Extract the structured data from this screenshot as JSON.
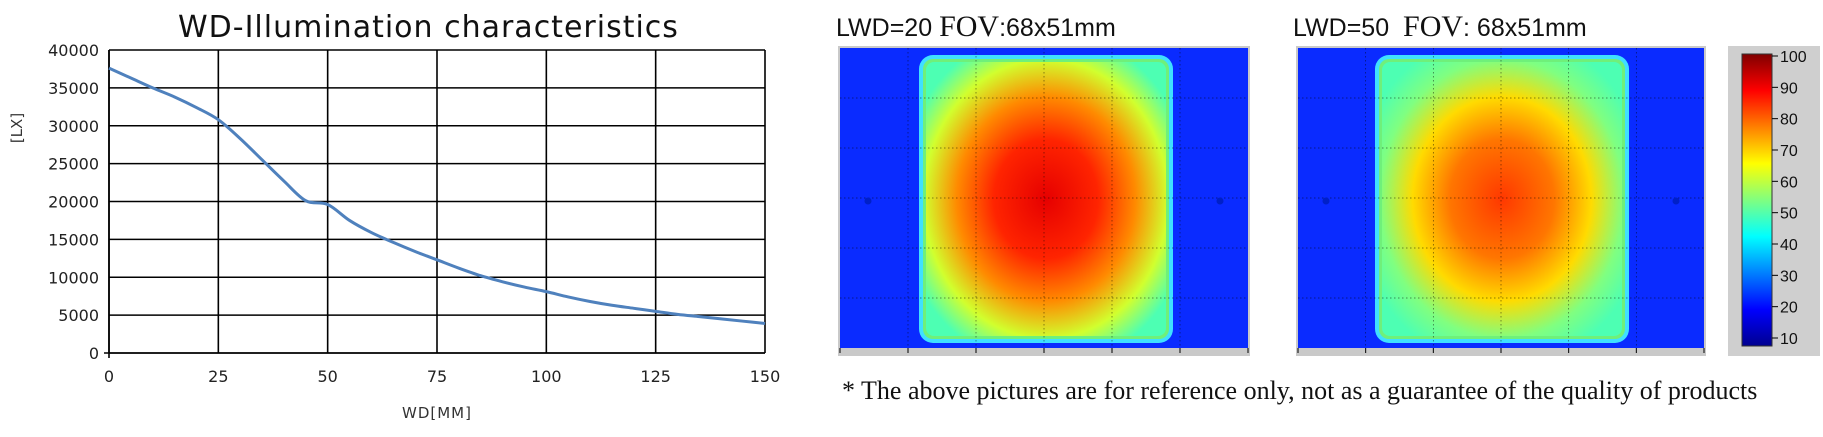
{
  "chart_data": [
    {
      "type": "line",
      "title": "WD-Illumination characteristics",
      "xlabel": "WD[MM]",
      "ylabel": "[LX]",
      "xlim": [
        0,
        150
      ],
      "ylim": [
        0,
        40000
      ],
      "xticks": [
        "0",
        "25",
        "50",
        "75",
        "100",
        "125",
        "150"
      ],
      "yticks": [
        "0",
        "5000",
        "10000",
        "15000",
        "20000",
        "25000",
        "30000",
        "35000",
        "40000"
      ],
      "grid": true,
      "legend": "none",
      "series": [
        {
          "color": "#4f81bd",
          "x": [
            0,
            5,
            10,
            15,
            20,
            25,
            30,
            35,
            40,
            45,
            50,
            55,
            60,
            65,
            70,
            75,
            80,
            85,
            90,
            95,
            100,
            105,
            110,
            115,
            120,
            125,
            130,
            135,
            140,
            145,
            150
          ],
          "values": [
            37600,
            36300,
            35000,
            33800,
            32400,
            30800,
            28300,
            25500,
            22700,
            20100,
            19600,
            17500,
            15900,
            14600,
            13400,
            12300,
            11200,
            10200,
            9400,
            8700,
            8100,
            7400,
            6800,
            6300,
            5900,
            5500,
            5100,
            4800,
            4500,
            4200,
            3900
          ]
        }
      ]
    },
    {
      "type": "heatmap",
      "title": "LWD=20",
      "fov_label": "FOV",
      "fov_value": ":68x51mm",
      "peak_center_percent": 90
    },
    {
      "type": "heatmap",
      "title": "LWD=50",
      "fov_label": "FOV",
      "fov_value": ": 68x51mm",
      "peak_center_percent": 82
    }
  ],
  "colorbar": {
    "ticks": [
      "100",
      "90",
      "80",
      "70",
      "60",
      "50",
      "40",
      "30",
      "20",
      "10"
    ],
    "colors": [
      "#00008f",
      "#0000ff",
      "#0080ff",
      "#00ffff",
      "#80ff80",
      "#ffff00",
      "#ff8000",
      "#ff0000",
      "#800000"
    ]
  },
  "note": "* The above pictures are for reference only, not as a guarantee of the quality of products"
}
